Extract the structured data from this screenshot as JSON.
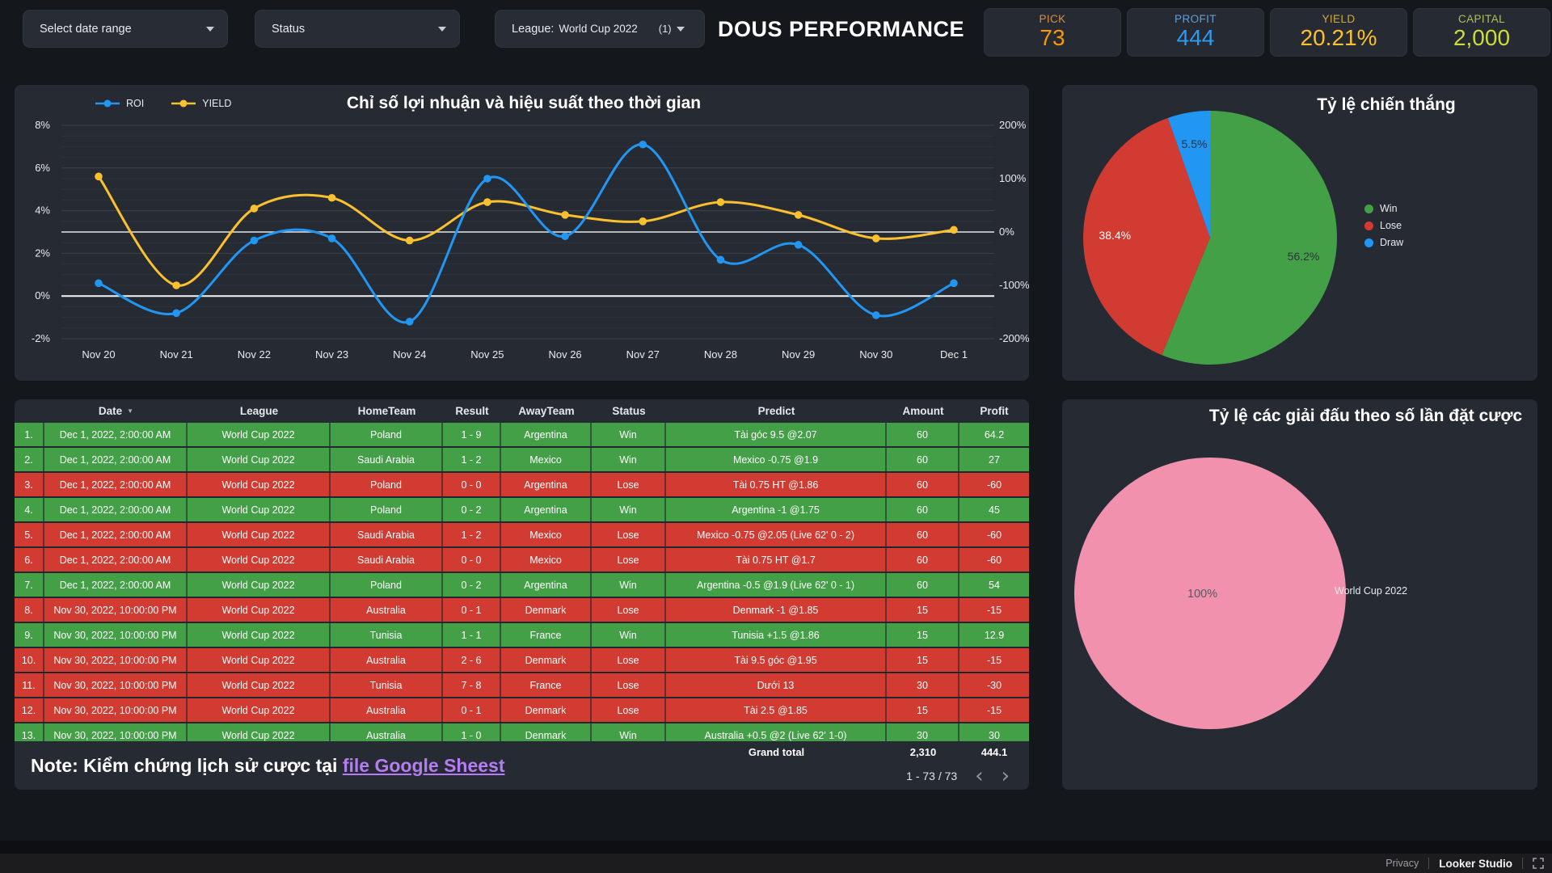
{
  "page": {
    "title": "DOUS PERFORMANCE"
  },
  "filters": {
    "date_range_label": "Select date range",
    "status_label": "Status",
    "league_label": "League:",
    "league_value": "World Cup 2022",
    "league_count": "(1)"
  },
  "scorecards": [
    {
      "label": "PICK",
      "value": "73",
      "color": "#ff9800",
      "label_color": "#efa14d"
    },
    {
      "label": "PROFIT",
      "value": "444",
      "color": "#2b9cf4",
      "label_color": "#6fb0ef"
    },
    {
      "label": "YIELD",
      "value": "20.21%",
      "color": "#fbc02d",
      "label_color": "#e6c04f"
    },
    {
      "label": "CAPITAL",
      "value": "2,000",
      "color": "#cddc39",
      "label_color": "#ccd95e"
    }
  ],
  "chart_data": [
    {
      "id": "roi_yield_timeline",
      "type": "line",
      "title": "Chỉ số lợi nhuận và hiệu suất theo thời gian",
      "categories": [
        "Nov 20",
        "Nov 21",
        "Nov 22",
        "Nov 23",
        "Nov 24",
        "Nov 25",
        "Nov 26",
        "Nov 27",
        "Nov 28",
        "Nov 29",
        "Nov 30",
        "Dec 1"
      ],
      "series": [
        {
          "name": "ROI",
          "color": "#2196f3",
          "values": [
            0.6,
            -0.8,
            2.6,
            2.7,
            -1.2,
            5.5,
            2.8,
            7.1,
            1.7,
            2.4,
            -0.9,
            0.6
          ]
        },
        {
          "name": "YIELD",
          "color": "#fbc02d",
          "values": [
            5.6,
            0.5,
            4.1,
            4.6,
            2.6,
            4.4,
            3.8,
            3.5,
            4.4,
            3.8,
            2.7,
            3.1
          ]
        }
      ],
      "left_axis": {
        "min": -2,
        "max": 8,
        "ticks": [
          "8%",
          "6%",
          "4%",
          "2%",
          "0%",
          "-2%"
        ]
      },
      "right_axis": {
        "min": -200,
        "max": 200,
        "ticks": [
          "200%",
          "100%",
          "0%",
          "-100%",
          "-200%"
        ]
      },
      "grid": true,
      "legend_position": "top-left"
    },
    {
      "id": "win_rate",
      "type": "pie",
      "title": "Tỷ lệ chiến thắng",
      "slices": [
        {
          "label": "Win",
          "value": 56.2,
          "display": "56.2%",
          "color": "#43a047",
          "label_color": "#2f333a"
        },
        {
          "label": "Lose",
          "value": 38.4,
          "display": "38.4%",
          "color": "#d23b31",
          "label_color": "#ffffff"
        },
        {
          "label": "Draw",
          "value": 5.5,
          "display": "5.5%",
          "color": "#2196f3",
          "label_color": "#2f333a"
        }
      ],
      "legend_position": "right"
    },
    {
      "id": "league_share",
      "type": "pie",
      "title": "Tỷ lệ các giải đấu theo số lần đặt cược",
      "slices": [
        {
          "label": "World Cup 2022",
          "value": 100,
          "display": "100%",
          "color": "#f291ae",
          "label_color": "#565a62"
        }
      ],
      "legend_position": "right"
    }
  ],
  "table": {
    "columns": [
      "Date",
      "League",
      "HomeTeam",
      "Result",
      "AwayTeam",
      "Status",
      "Predict",
      "Amount",
      "Profit"
    ],
    "sort_column": "Date",
    "rows": [
      {
        "n": "1.",
        "date": "Dec 1, 2022, 2:00:00 AM",
        "league": "World Cup 2022",
        "home": "Poland",
        "result": "1 - 9",
        "away": "Argentina",
        "status": "Win",
        "predict": "Tài góc 9.5 @2.07",
        "amount": "60",
        "profit": "64.2",
        "outcome": "win"
      },
      {
        "n": "2.",
        "date": "Dec 1, 2022, 2:00:00 AM",
        "league": "World Cup 2022",
        "home": "Saudi Arabia",
        "result": "1 - 2",
        "away": "Mexico",
        "status": "Win",
        "predict": "Mexico -0.75 @1.9",
        "amount": "60",
        "profit": "27",
        "outcome": "win"
      },
      {
        "n": "3.",
        "date": "Dec 1, 2022, 2:00:00 AM",
        "league": "World Cup 2022",
        "home": "Poland",
        "result": "0 - 0",
        "away": "Argentina",
        "status": "Lose",
        "predict": "Tài 0.75 HT @1.86",
        "amount": "60",
        "profit": "-60",
        "outcome": "lose"
      },
      {
        "n": "4.",
        "date": "Dec 1, 2022, 2:00:00 AM",
        "league": "World Cup 2022",
        "home": "Poland",
        "result": "0 - 2",
        "away": "Argentina",
        "status": "Win",
        "predict": "Argentina -1 @1.75",
        "amount": "60",
        "profit": "45",
        "outcome": "win"
      },
      {
        "n": "5.",
        "date": "Dec 1, 2022, 2:00:00 AM",
        "league": "World Cup 2022",
        "home": "Saudi Arabia",
        "result": "1 - 2",
        "away": "Mexico",
        "status": "Lose",
        "predict": "Mexico -0.75 @2.05 (Live 62' 0 - 2)",
        "amount": "60",
        "profit": "-60",
        "outcome": "lose"
      },
      {
        "n": "6.",
        "date": "Dec 1, 2022, 2:00:00 AM",
        "league": "World Cup 2022",
        "home": "Saudi Arabia",
        "result": "0 - 0",
        "away": "Mexico",
        "status": "Lose",
        "predict": "Tài 0.75 HT @1.7",
        "amount": "60",
        "profit": "-60",
        "outcome": "lose"
      },
      {
        "n": "7.",
        "date": "Dec 1, 2022, 2:00:00 AM",
        "league": "World Cup 2022",
        "home": "Poland",
        "result": "0 - 2",
        "away": "Argentina",
        "status": "Win",
        "predict": "Argentina -0.5 @1.9 (Live 62' 0 - 1)",
        "amount": "60",
        "profit": "54",
        "outcome": "win"
      },
      {
        "n": "8.",
        "date": "Nov 30, 2022, 10:00:00 PM",
        "league": "World Cup 2022",
        "home": "Australia",
        "result": "0 - 1",
        "away": "Denmark",
        "status": "Lose",
        "predict": "Denmark -1 @1.85",
        "amount": "15",
        "profit": "-15",
        "outcome": "lose"
      },
      {
        "n": "9.",
        "date": "Nov 30, 2022, 10:00:00 PM",
        "league": "World Cup 2022",
        "home": "Tunisia",
        "result": "1 - 1",
        "away": "France",
        "status": "Win",
        "predict": "Tunisia +1.5 @1.86",
        "amount": "15",
        "profit": "12.9",
        "outcome": "win"
      },
      {
        "n": "10.",
        "date": "Nov 30, 2022, 10:00:00 PM",
        "league": "World Cup 2022",
        "home": "Australia",
        "result": "2 - 6",
        "away": "Denmark",
        "status": "Lose",
        "predict": "Tài 9.5 góc @1.95",
        "amount": "15",
        "profit": "-15",
        "outcome": "lose"
      },
      {
        "n": "11.",
        "date": "Nov 30, 2022, 10:00:00 PM",
        "league": "World Cup 2022",
        "home": "Tunisia",
        "result": "7 - 8",
        "away": "France",
        "status": "Lose",
        "predict": "Dưới 13",
        "amount": "30",
        "profit": "-30",
        "outcome": "lose"
      },
      {
        "n": "12.",
        "date": "Nov 30, 2022, 10:00:00 PM",
        "league": "World Cup 2022",
        "home": "Australia",
        "result": "0 - 1",
        "away": "Denmark",
        "status": "Lose",
        "predict": "Tài 2.5 @1.85",
        "amount": "15",
        "profit": "-15",
        "outcome": "lose"
      },
      {
        "n": "13.",
        "date": "Nov 30, 2022, 10:00:00 PM",
        "league": "World Cup 2022",
        "home": "Australia",
        "result": "1 - 0",
        "away": "Denmark",
        "status": "Win",
        "predict": "Australia +0.5 @2 (Live 62' 1-0)",
        "amount": "30",
        "profit": "30",
        "outcome": "win"
      }
    ],
    "grand_total": {
      "label": "Grand total",
      "amount": "2,310",
      "profit": "444.1"
    },
    "pagination": "1 - 73 / 73"
  },
  "note": {
    "prefix": "Note: Kiểm chứng lịch sử cược tại ",
    "link_text": "file Google Sheest"
  },
  "footer": {
    "privacy": "Privacy",
    "brand": "Looker Studio"
  }
}
